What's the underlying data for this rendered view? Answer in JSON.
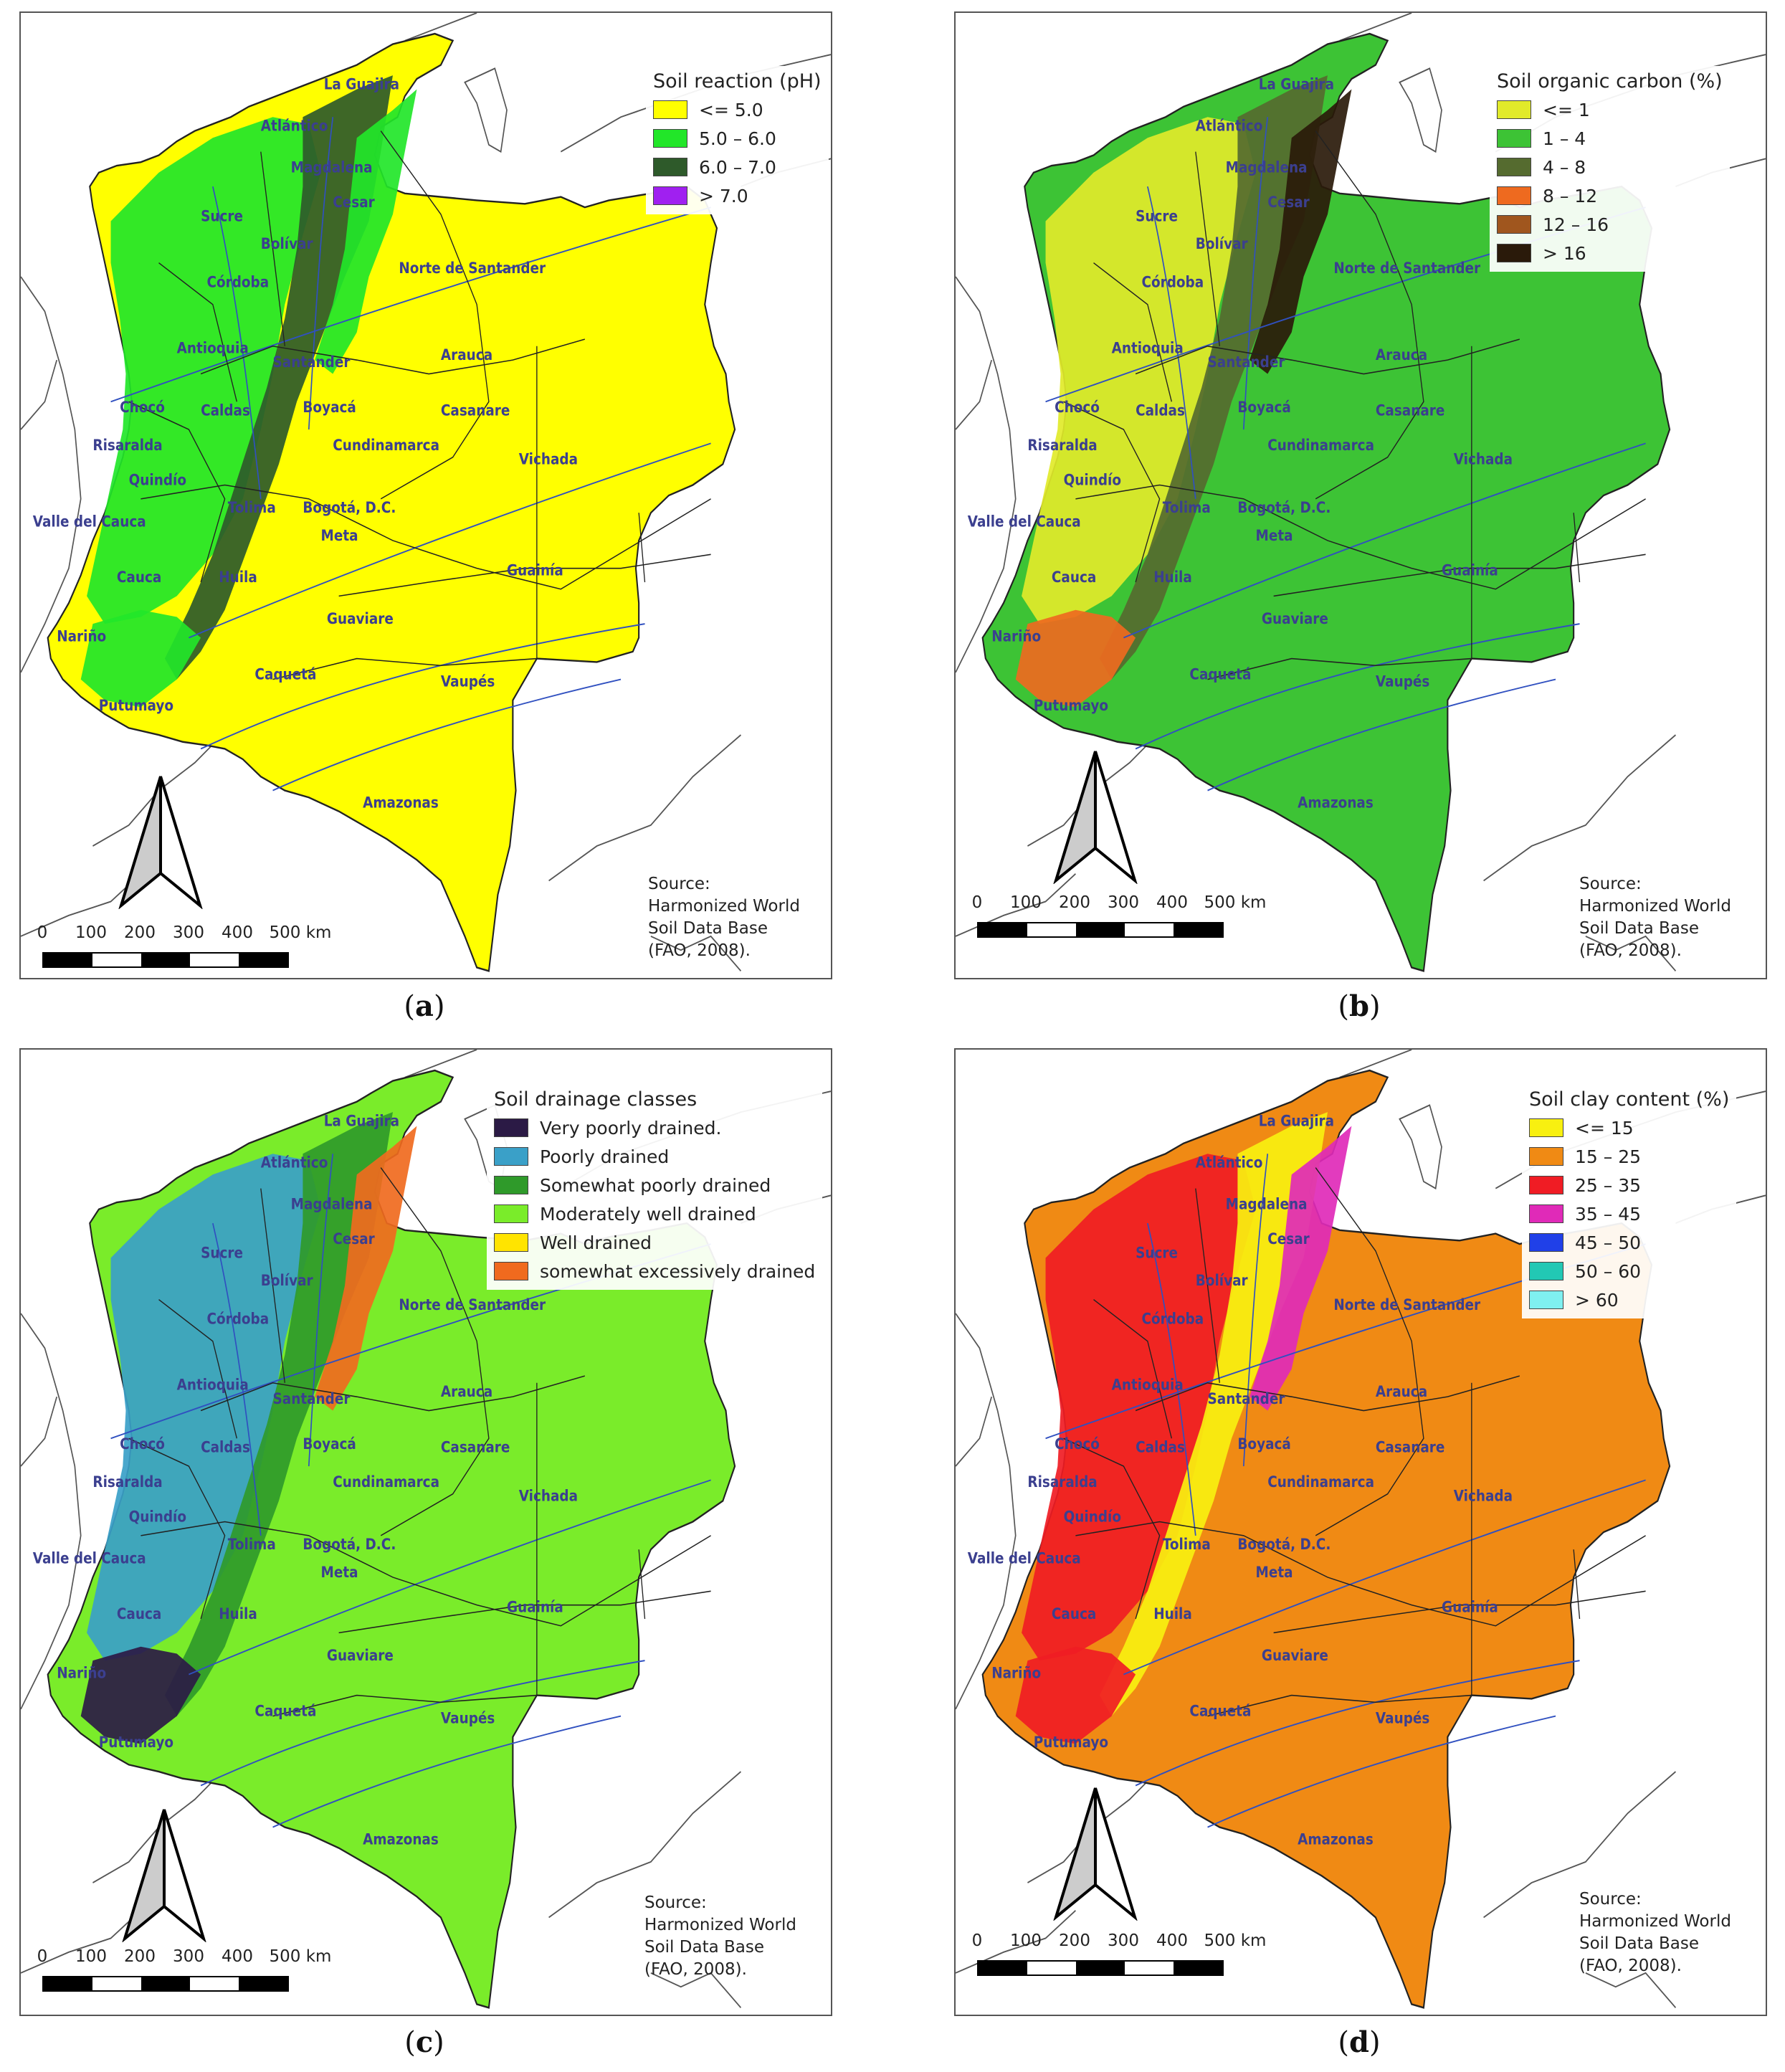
{
  "panels": [
    {
      "id": "a",
      "caption_letter": "a",
      "legend": {
        "title": "Soil reaction (pH)",
        "items": [
          {
            "label": "<= 5.0",
            "color": "#ffff00"
          },
          {
            "label": "5.0 – 6.0",
            "color": "#22e629"
          },
          {
            "label": "6.0 – 7.0",
            "color": "#2e5a2a"
          },
          {
            "label": "> 7.0",
            "color": "#a020f0"
          }
        ]
      },
      "base_color": "#ffff00",
      "patch_colors": [
        "#22e629",
        "#2e5a2a",
        "#22e629"
      ]
    },
    {
      "id": "b",
      "caption_letter": "b",
      "legend": {
        "title": "Soil organic carbon (%)",
        "items": [
          {
            "label": "<= 1",
            "color": "#e1ea2a"
          },
          {
            "label": "1 – 4",
            "color": "#3dc335"
          },
          {
            "label": "4 – 8",
            "color": "#556b2f"
          },
          {
            "label": "8 – 12",
            "color": "#ee6a1f"
          },
          {
            "label": "12 – 16",
            "color": "#a0561e"
          },
          {
            "label": "> 16",
            "color": "#2a1a0a"
          }
        ]
      },
      "base_color": "#3dc335",
      "patch_colors": [
        "#e1ea2a",
        "#556b2f",
        "#2a1a0a",
        "#ee6a1f"
      ]
    },
    {
      "id": "c",
      "caption_letter": "c",
      "legend": {
        "title": "Soil drainage classes",
        "items": [
          {
            "label": "Very poorly drained.",
            "color": "#2b1a45"
          },
          {
            "label": "Poorly drained",
            "color": "#3aa0c8"
          },
          {
            "label": "Somewhat poorly drained",
            "color": "#2f9a2a"
          },
          {
            "label": "Moderately well drained",
            "color": "#7aec2a"
          },
          {
            "label": "Well drained",
            "color": "#ffe400"
          },
          {
            "label": "somewhat excessively drained",
            "color": "#f06a1e"
          }
        ]
      },
      "base_color": "#7aec2a",
      "patch_colors": [
        "#3aa0c8",
        "#2f9a2a",
        "#f06a1e",
        "#2b1a45"
      ]
    },
    {
      "id": "d",
      "caption_letter": "d",
      "legend": {
        "title": "Soil clay content (%)",
        "items": [
          {
            "label": "<= 15",
            "color": "#f8f010"
          },
          {
            "label": "15 – 25",
            "color": "#f08a14"
          },
          {
            "label": "25 – 35",
            "color": "#f01c24"
          },
          {
            "label": "35 – 45",
            "color": "#e02ab8"
          },
          {
            "label": "45 – 50",
            "color": "#2040e8"
          },
          {
            "label": "50 – 60",
            "color": "#22c8b4"
          },
          {
            "label": "> 60",
            "color": "#7ff0f0"
          }
        ]
      },
      "base_color": "#f08a14",
      "patch_colors": [
        "#f01c24",
        "#f8f010",
        "#e02ab8",
        "#f01c24"
      ]
    }
  ],
  "departments": [
    "La Guajira",
    "Atlántico",
    "Magdalena",
    "Cesar",
    "Sucre",
    "Bolívar",
    "Córdoba",
    "Norte de Santander",
    "Antioquia",
    "Santander",
    "Arauca",
    "Chocó",
    "Caldas",
    "Boyacá",
    "Casanare",
    "Risaralda",
    "Cundinamarca",
    "Vichada",
    "Quindío",
    "Bogotá, D.C.",
    "Tolima",
    "Valle del Cauca",
    "Meta",
    "Cauca",
    "Huila",
    "Guainía",
    "Guaviare",
    "Nariño",
    "Caquetá",
    "Vaupés",
    "Putumayo",
    "Amazonas"
  ],
  "scale_ticks": [
    "0",
    "100",
    "200",
    "300",
    "400",
    "500 km"
  ],
  "source_lines": [
    "Source:",
    "Harmonized World",
    "Soil Data Base",
    "(FAO, 2008)."
  ],
  "colors": {
    "river": "#3050c0",
    "boundary": "#222222",
    "coast": "#555555"
  }
}
